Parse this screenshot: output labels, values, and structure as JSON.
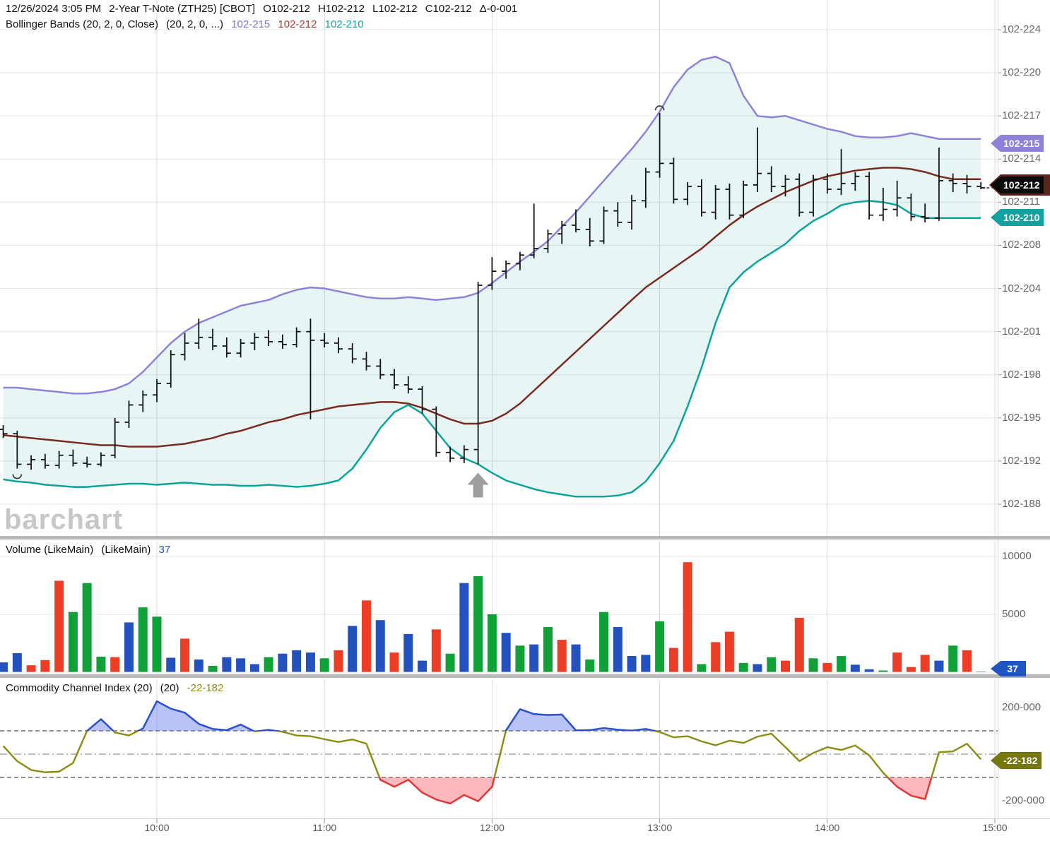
{
  "header": {
    "line1": {
      "timestamp": "12/26/2024 3:05 PM",
      "instrument": "2-Year T-Note (ZTH25) [CBOT]",
      "open_label": "O102-212",
      "high_label": "H102-212",
      "low_label": "L102-212",
      "close_label": "C102-212",
      "change_label": "Δ-0-001"
    },
    "line2": {
      "study": "Bollinger Bands (20, 2, 0, Close)",
      "params": "(20, 2, 0, ...)",
      "upper_value": "102-215",
      "middle_value": "102-212",
      "lower_value": "102-210"
    }
  },
  "watermark": "barchart",
  "panels": {
    "volume": {
      "title": "Volume (LikeMain)",
      "params": "(LikeMain)",
      "last_value": "37"
    },
    "cci": {
      "title": "Commodity Channel Index (20)",
      "params": "(20)",
      "last_value": "-22-182"
    }
  },
  "badges": {
    "upper": "102-215",
    "close": "102-212",
    "lower": "102-210",
    "volume": "37",
    "cci": "-22-182"
  },
  "colors": {
    "band_upper": "#8d82d8",
    "band_middle": "#7a2b20",
    "band_fill": "rgba(17,168,160,0.10)",
    "band_lower": "#0ba39a",
    "bar_stroke": "#151515",
    "vol_red": "#ee3d25",
    "vol_green": "#0fa138",
    "vol_blue": "#2351bd",
    "cci_line": "#8b8d12",
    "cci_blue_line": "#2a4fd6",
    "cci_red_line": "#e73540",
    "cci_fill_blue": "rgba(80,105,235,0.40)",
    "cci_fill_red": "rgba(244,80,90,0.40)",
    "badge_upper_bg": "#8d82d8",
    "badge_close_bg": "#0a0a0a",
    "badge_close_border": "#5c241c",
    "badge_lower_bg": "#12a3a0",
    "badge_volume_bg": "#2255c4",
    "badge_cci_bg": "#77770f",
    "grid_h": "#e4e4e4",
    "grid_v": "#d9d9d9",
    "annotation_gray": "#9e9e9e"
  },
  "axes": {
    "price_ticks": [
      {
        "label": "102-224",
        "code": 224
      },
      {
        "label": "102-220",
        "code": 220
      },
      {
        "label": "102-217",
        "code": 217
      },
      {
        "label": "102-214",
        "code": 214
      },
      {
        "label": "102-211",
        "code": 211
      },
      {
        "label": "102-208",
        "code": 208
      },
      {
        "label": "102-204",
        "code": 204
      },
      {
        "label": "102-201",
        "code": 201
      },
      {
        "label": "102-198",
        "code": 198
      },
      {
        "label": "102-195",
        "code": 195
      },
      {
        "label": "102-192",
        "code": 192
      },
      {
        "label": "102-188",
        "code": 188
      }
    ],
    "volume_ticks": [
      {
        "label": "10000",
        "value": 10000
      },
      {
        "label": "5000",
        "value": 5000
      }
    ],
    "cci_ticks": [
      {
        "label": "200-000",
        "value": 200
      },
      {
        "label": "-200-000",
        "value": -200
      }
    ],
    "time_ticks": [
      "10:00",
      "11:00",
      "12:00",
      "13:00",
      "14:00",
      "15:00"
    ]
  },
  "chart_data": [
    {
      "type": "ohlc",
      "title": "2-Year T-Note (ZTH25) 5-minute bars with Bollinger Bands (20,2,0,Close)",
      "y_unit": "price code: 212 means 102-212 (treasury 32nds display)",
      "ylim_codes": [
        188,
        224
      ],
      "x": [
        "9:05",
        "9:10",
        "9:15",
        "9:20",
        "9:25",
        "9:30",
        "9:35",
        "9:40",
        "9:45",
        "9:50",
        "9:55",
        "10:00",
        "10:05",
        "10:10",
        "10:15",
        "10:20",
        "10:25",
        "10:30",
        "10:35",
        "10:40",
        "10:45",
        "10:50",
        "10:55",
        "11:00",
        "11:05",
        "11:10",
        "11:15",
        "11:20",
        "11:25",
        "11:30",
        "11:35",
        "11:40",
        "11:45",
        "11:50",
        "11:55",
        "12:00",
        "12:05",
        "12:10",
        "12:15",
        "12:20",
        "12:25",
        "12:30",
        "12:35",
        "12:40",
        "12:45",
        "12:50",
        "12:55",
        "13:00",
        "13:05",
        "13:10",
        "13:15",
        "13:20",
        "13:25",
        "13:30",
        "13:35",
        "13:40",
        "13:45",
        "13:50",
        "13:55",
        "14:00",
        "14:05",
        "14:10",
        "14:15",
        "14:20",
        "14:25",
        "14:30",
        "14:35",
        "14:40",
        "14:45",
        "14:50",
        "14:55"
      ],
      "bars_ohlc": [
        [
          194.2,
          194.5,
          193.6,
          193.9
        ],
        [
          193.9,
          194.1,
          191.3,
          191.7
        ],
        [
          191.7,
          192.4,
          191.2,
          192.1
        ],
        [
          192.1,
          192.5,
          191.3,
          191.6
        ],
        [
          191.6,
          192.7,
          191.3,
          192.4
        ],
        [
          192.4,
          192.8,
          191.5,
          191.8
        ],
        [
          191.8,
          192.3,
          191.4,
          191.7
        ],
        [
          191.7,
          192.6,
          191.5,
          192.4
        ],
        [
          192.4,
          195.0,
          192.2,
          194.7
        ],
        [
          194.7,
          196.2,
          194.3,
          195.9
        ],
        [
          195.9,
          196.9,
          195.4,
          196.6
        ],
        [
          196.6,
          197.7,
          196.1,
          197.4
        ],
        [
          197.4,
          199.7,
          197.1,
          199.4
        ],
        [
          199.4,
          200.9,
          199.0,
          200.2
        ],
        [
          200.2,
          201.9,
          199.8,
          200.6
        ],
        [
          200.6,
          201.2,
          199.7,
          200.0
        ],
        [
          200.0,
          200.6,
          199.2,
          199.5
        ],
        [
          199.5,
          200.5,
          199.2,
          200.2
        ],
        [
          200.2,
          200.9,
          199.7,
          200.6
        ],
        [
          200.6,
          201.1,
          200.0,
          200.3
        ],
        [
          200.3,
          200.8,
          199.8,
          200.1
        ],
        [
          200.1,
          201.3,
          199.9,
          201.0
        ],
        [
          201.0,
          201.9,
          194.9,
          200.4
        ],
        [
          200.4,
          200.9,
          199.9,
          200.2
        ],
        [
          200.2,
          200.6,
          199.5,
          199.8
        ],
        [
          199.8,
          200.2,
          198.8,
          199.1
        ],
        [
          199.1,
          199.6,
          198.3,
          198.6
        ],
        [
          198.6,
          199.1,
          197.7,
          198.0
        ],
        [
          198.0,
          198.4,
          197.0,
          197.3
        ],
        [
          197.3,
          197.9,
          196.7,
          197.0
        ],
        [
          197.0,
          197.2,
          195.3,
          195.6
        ],
        [
          195.6,
          195.8,
          192.3,
          192.6
        ],
        [
          192.6,
          193.0,
          191.9,
          192.2
        ],
        [
          192.2,
          193.1,
          191.8,
          192.8
        ],
        [
          192.8,
          204.6,
          191.7,
          204.3
        ],
        [
          204.3,
          206.9,
          203.9,
          205.6
        ],
        [
          205.6,
          206.6,
          204.9,
          206.3
        ],
        [
          206.3,
          207.4,
          205.7,
          207.1
        ],
        [
          207.1,
          210.9,
          206.8,
          207.7
        ],
        [
          207.7,
          209.1,
          207.3,
          208.8
        ],
        [
          208.8,
          209.7,
          208.1,
          209.4
        ],
        [
          209.4,
          210.5,
          208.9,
          209.1
        ],
        [
          209.1,
          209.9,
          207.9,
          208.3
        ],
        [
          208.3,
          210.7,
          208.1,
          210.4
        ],
        [
          210.4,
          211.0,
          209.3,
          209.6
        ],
        [
          209.6,
          211.5,
          209.1,
          211.1
        ],
        [
          211.1,
          213.4,
          210.6,
          213.1
        ],
        [
          213.1,
          217.2,
          212.7,
          213.7
        ],
        [
          213.7,
          214.1,
          210.9,
          211.2
        ],
        [
          211.2,
          212.4,
          210.8,
          212.1
        ],
        [
          212.1,
          212.6,
          210.0,
          210.3
        ],
        [
          210.3,
          212.2,
          209.8,
          211.9
        ],
        [
          211.9,
          212.3,
          209.8,
          210.1
        ],
        [
          210.1,
          212.5,
          209.9,
          212.2
        ],
        [
          212.2,
          216.2,
          211.7,
          213.0
        ],
        [
          213.0,
          213.5,
          211.7,
          212.1
        ],
        [
          212.1,
          212.9,
          211.4,
          212.6
        ],
        [
          212.6,
          213.0,
          210.0,
          210.3
        ],
        [
          210.3,
          212.9,
          210.0,
          212.6
        ],
        [
          212.6,
          213.0,
          211.6,
          211.9
        ],
        [
          211.9,
          214.7,
          211.5,
          212.3
        ],
        [
          212.3,
          213.1,
          211.8,
          212.8
        ],
        [
          212.8,
          213.1,
          209.8,
          210.1
        ],
        [
          210.1,
          212.0,
          209.7,
          210.5
        ],
        [
          210.5,
          212.5,
          210.0,
          211.3
        ],
        [
          211.3,
          211.6,
          209.7,
          210.0
        ],
        [
          210.0,
          210.9,
          209.6,
          209.9
        ],
        [
          209.9,
          214.8,
          209.7,
          212.5
        ],
        [
          212.5,
          213.0,
          211.7,
          212.3
        ],
        [
          212.3,
          212.9,
          211.6,
          212.1
        ],
        [
          212.1,
          212.4,
          211.9,
          212.0
        ]
      ],
      "bollinger": {
        "upper": [
          197.1,
          197.1,
          197.0,
          196.9,
          196.8,
          196.7,
          196.7,
          196.8,
          197.0,
          197.4,
          198.2,
          199.2,
          200.2,
          201.0,
          201.6,
          202.0,
          202.4,
          202.8,
          203.0,
          203.2,
          203.6,
          203.9,
          204.1,
          204.0,
          203.8,
          203.6,
          203.4,
          203.3,
          203.3,
          203.4,
          203.3,
          203.2,
          203.3,
          203.4,
          203.7,
          204.5,
          205.5,
          206.5,
          207.4,
          208.3,
          209.3,
          210.3,
          211.4,
          212.5,
          213.6,
          214.7,
          215.9,
          217.3,
          219.0,
          220.3,
          221.2,
          221.5,
          220.9,
          218.4,
          217.0,
          216.9,
          217.0,
          216.7,
          216.4,
          216.1,
          215.9,
          215.6,
          215.5,
          215.5,
          215.6,
          215.8,
          215.6,
          215.4,
          215.4,
          215.4,
          215.4
        ],
        "middle": [
          193.8,
          193.7,
          193.6,
          193.5,
          193.4,
          193.3,
          193.2,
          193.1,
          193.1,
          193.0,
          193.0,
          193.0,
          193.1,
          193.2,
          193.4,
          193.6,
          193.9,
          194.1,
          194.4,
          194.7,
          194.9,
          195.2,
          195.4,
          195.6,
          195.8,
          195.9,
          196.0,
          196.1,
          196.1,
          196.0,
          195.7,
          195.3,
          194.9,
          194.6,
          194.6,
          194.8,
          195.3,
          196.0,
          196.9,
          197.8,
          198.7,
          199.6,
          200.5,
          201.4,
          202.3,
          203.2,
          204.1,
          205.0,
          205.9,
          206.8,
          207.7,
          208.6,
          209.4,
          210.1,
          210.7,
          211.2,
          211.7,
          212.1,
          212.5,
          212.8,
          213.0,
          213.2,
          213.3,
          213.4,
          213.4,
          213.3,
          213.1,
          212.8,
          212.6,
          212.6,
          212.6
        ],
        "lower": [
          190.3,
          190.1,
          190.0,
          189.8,
          189.7,
          189.6,
          189.6,
          189.7,
          189.8,
          189.9,
          189.9,
          189.8,
          189.9,
          190.0,
          189.9,
          189.8,
          189.8,
          189.7,
          189.7,
          189.8,
          189.7,
          189.6,
          189.7,
          189.9,
          190.2,
          191.3,
          192.8,
          194.3,
          195.4,
          195.9,
          195.3,
          194.1,
          192.9,
          192.2,
          191.7,
          190.9,
          190.2,
          189.8,
          189.4,
          189.1,
          188.9,
          188.7,
          188.7,
          188.7,
          188.8,
          189.1,
          190.1,
          191.8,
          193.4,
          195.8,
          198.5,
          201.6,
          204.1,
          205.5,
          206.5,
          207.3,
          208.1,
          209.0,
          209.7,
          210.2,
          210.8,
          211.0,
          211.1,
          211.0,
          210.8,
          210.2,
          209.9,
          209.9,
          209.9,
          209.9,
          209.9
        ]
      },
      "annotations": [
        {
          "type": "circle-low",
          "bar_index": 2
        },
        {
          "type": "circle-high",
          "bar_index": 48
        },
        {
          "type": "arrow-up",
          "bar_index": 35
        }
      ]
    },
    {
      "type": "bar",
      "title": "Volume (LikeMain)",
      "ylabel": "Volume",
      "ylim": [
        0,
        10500
      ],
      "last_value": 37,
      "values": [
        850,
        1650,
        600,
        1050,
        7900,
        5200,
        7700,
        1350,
        1300,
        4300,
        5600,
        4800,
        1250,
        2900,
        1100,
        550,
        1300,
        1200,
        700,
        1300,
        1600,
        1900,
        1700,
        1200,
        1900,
        4000,
        6200,
        4500,
        1700,
        3300,
        1000,
        3700,
        1600,
        7700,
        8300,
        5000,
        3400,
        2300,
        2400,
        3900,
        2800,
        2400,
        1100,
        5200,
        3900,
        1400,
        1500,
        4400,
        2100,
        9500,
        700,
        2600,
        3500,
        800,
        700,
        1300,
        1000,
        4700,
        1200,
        800,
        1400,
        650,
        250,
        150,
        1700,
        450,
        1500,
        1000,
        2300,
        1900,
        37
      ],
      "bar_colors": [
        "blue",
        "blue",
        "red",
        "red",
        "red",
        "green",
        "green",
        "green",
        "red",
        "blue",
        "green",
        "green",
        "blue",
        "red",
        "blue",
        "green",
        "blue",
        "blue",
        "blue",
        "green",
        "blue",
        "blue",
        "blue",
        "green",
        "red",
        "blue",
        "red",
        "blue",
        "red",
        "blue",
        "blue",
        "red",
        "green",
        "blue",
        "green",
        "green",
        "blue",
        "green",
        "blue",
        "green",
        "red",
        "blue",
        "green",
        "green",
        "blue",
        "blue",
        "blue",
        "green",
        "red",
        "red",
        "green",
        "red",
        "red",
        "green",
        "blue",
        "green",
        "red",
        "red",
        "green",
        "red",
        "green",
        "blue",
        "blue",
        "green",
        "red",
        "red",
        "red",
        "blue",
        "green",
        "red",
        "blue"
      ]
    },
    {
      "type": "line",
      "title": "Commodity Channel Index (20)",
      "ylim": [
        -260,
        300
      ],
      "thresholds": {
        "upper": 100,
        "zero": 0,
        "lower": -100
      },
      "last_value": -22.182,
      "values": [
        35,
        -30,
        -68,
        -78,
        -75,
        -38,
        100,
        150,
        93,
        80,
        110,
        227,
        195,
        178,
        130,
        108,
        103,
        127,
        97,
        104,
        96,
        80,
        77,
        64,
        52,
        63,
        45,
        -110,
        -140,
        -110,
        -165,
        -195,
        -212,
        -175,
        -202,
        -140,
        102,
        193,
        172,
        168,
        170,
        102,
        103,
        112,
        105,
        101,
        108,
        95,
        72,
        77,
        55,
        38,
        58,
        48,
        75,
        88,
        30,
        -30,
        5,
        30,
        18,
        37,
        -5,
        -80,
        -140,
        -178,
        -193,
        8,
        12,
        45,
        -22
      ]
    }
  ]
}
